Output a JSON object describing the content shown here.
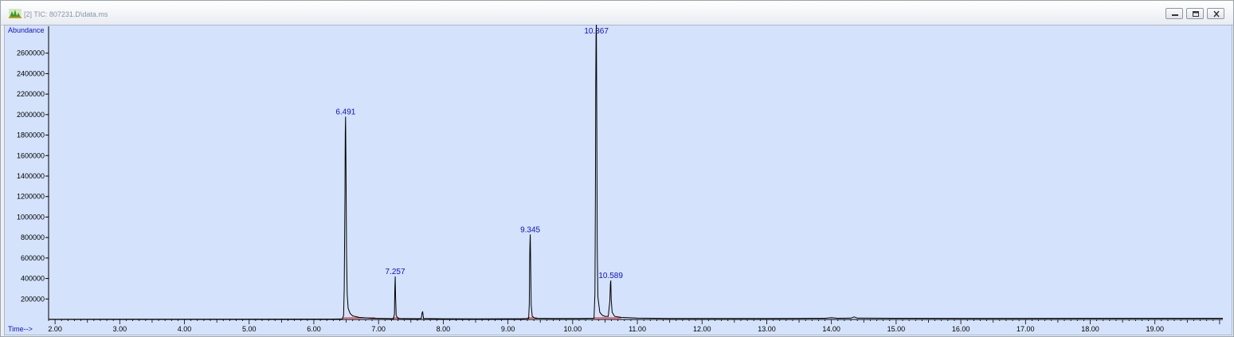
{
  "window": {
    "title": "[2] TIC: 807231.D\\data.ms",
    "controls": [
      "minimize",
      "restore",
      "close"
    ]
  },
  "colors": {
    "plot_bg": "#d4e2fb",
    "trace": "#000000",
    "baseline": "#ff0000",
    "label_text": "#1010c0"
  },
  "chart_data": {
    "type": "line",
    "title": "",
    "ylabel": "Abundance",
    "xlabel": "Time-->",
    "xlim": [
      1.9,
      20.05
    ],
    "ylim": [
      0,
      2800000
    ],
    "yticks": [
      200000,
      400000,
      600000,
      800000,
      1000000,
      1200000,
      1400000,
      1600000,
      1800000,
      2000000,
      2200000,
      2400000,
      2600000
    ],
    "ytick_labels": [
      "200000",
      "400000",
      "600000",
      "800000",
      "1000000",
      "1200000",
      "1400000",
      "1600000",
      "1800000",
      "2000000",
      "2200000",
      "2400000",
      "2600000"
    ],
    "xticks": [
      2,
      3,
      4,
      5,
      6,
      7,
      8,
      9,
      10,
      11,
      12,
      13,
      14,
      15,
      16,
      17,
      18,
      19
    ],
    "xtick_labels": [
      "2.00",
      "3.00",
      "4.00",
      "5.00",
      "6.00",
      "7.00",
      "8.00",
      "9.00",
      "10.00",
      "11.00",
      "12.00",
      "13.00",
      "14.00",
      "15.00",
      "16.00",
      "17.00",
      "18.00",
      "19.00"
    ],
    "grid": false,
    "series": [
      {
        "points": [
          [
            1.9,
            2000
          ],
          [
            6.3,
            4000
          ],
          [
            6.44,
            6000
          ],
          [
            6.46,
            40000
          ],
          [
            6.47,
            300000
          ],
          [
            6.48,
            1200000
          ],
          [
            6.485,
            1820000
          ],
          [
            6.491,
            1980000
          ],
          [
            6.497,
            1500000
          ],
          [
            6.505,
            650000
          ],
          [
            6.515,
            250000
          ],
          [
            6.53,
            110000
          ],
          [
            6.56,
            60000
          ],
          [
            6.6,
            35000
          ],
          [
            6.7,
            20000
          ],
          [
            6.9,
            12000
          ],
          [
            7.1,
            9000
          ],
          [
            7.23,
            8000
          ],
          [
            7.245,
            50000
          ],
          [
            7.252,
            300000
          ],
          [
            7.257,
            420000
          ],
          [
            7.262,
            240000
          ],
          [
            7.272,
            40000
          ],
          [
            7.3,
            9000
          ],
          [
            7.6,
            8000
          ],
          [
            7.66,
            9000
          ],
          [
            7.675,
            70000
          ],
          [
            7.683,
            75000
          ],
          [
            7.695,
            10000
          ],
          [
            8.0,
            7000
          ],
          [
            8.5,
            6000
          ],
          [
            9.2,
            7000
          ],
          [
            9.32,
            10000
          ],
          [
            9.33,
            150000
          ],
          [
            9.336,
            600000
          ],
          [
            9.34,
            730000
          ],
          [
            9.345,
            830000
          ],
          [
            9.35,
            620000
          ],
          [
            9.36,
            140000
          ],
          [
            9.375,
            30000
          ],
          [
            9.42,
            12000
          ],
          [
            9.7,
            10000
          ],
          [
            10.1,
            9000
          ],
          [
            10.33,
            12000
          ],
          [
            10.345,
            250000
          ],
          [
            10.352,
            1200000
          ],
          [
            10.357,
            2250000
          ],
          [
            10.362,
            2780000
          ],
          [
            10.367,
            2900000
          ],
          [
            10.373,
            2000000
          ],
          [
            10.38,
            700000
          ],
          [
            10.39,
            220000
          ],
          [
            10.42,
            70000
          ],
          [
            10.46,
            40000
          ],
          [
            10.5,
            30000
          ],
          [
            10.55,
            30000
          ],
          [
            10.575,
            180000
          ],
          [
            10.584,
            350000
          ],
          [
            10.589,
            380000
          ],
          [
            10.596,
            200000
          ],
          [
            10.61,
            70000
          ],
          [
            10.65,
            30000
          ],
          [
            10.75,
            20000
          ],
          [
            11.0,
            14000
          ],
          [
            11.5,
            10000
          ],
          [
            12.0,
            9000
          ],
          [
            12.5,
            9000
          ],
          [
            13.0,
            10000
          ],
          [
            13.5,
            11000
          ],
          [
            13.9,
            12000
          ],
          [
            14.0,
            18000
          ],
          [
            14.1,
            12000
          ],
          [
            14.3,
            13000
          ],
          [
            14.35,
            25000
          ],
          [
            14.4,
            13000
          ],
          [
            15.0,
            12000
          ],
          [
            16.0,
            11000
          ],
          [
            17.0,
            11000
          ],
          [
            18.0,
            12000
          ],
          [
            19.0,
            12000
          ],
          [
            20.05,
            12000
          ]
        ]
      }
    ],
    "peak_labels": [
      {
        "x": 6.491,
        "y": 1980000,
        "label": "6.491"
      },
      {
        "x": 7.257,
        "y": 420000,
        "label": "7.257"
      },
      {
        "x": 9.345,
        "y": 830000,
        "label": "9.345"
      },
      {
        "x": 10.367,
        "y": 2780000,
        "label": "10.367"
      },
      {
        "x": 10.589,
        "y": 380000,
        "label": "10.589"
      }
    ],
    "integration_baselines": [
      [
        6.44,
        6.95
      ],
      [
        7.22,
        7.32
      ],
      [
        9.3,
        9.45
      ],
      [
        10.32,
        10.55
      ],
      [
        10.55,
        10.75
      ]
    ]
  }
}
